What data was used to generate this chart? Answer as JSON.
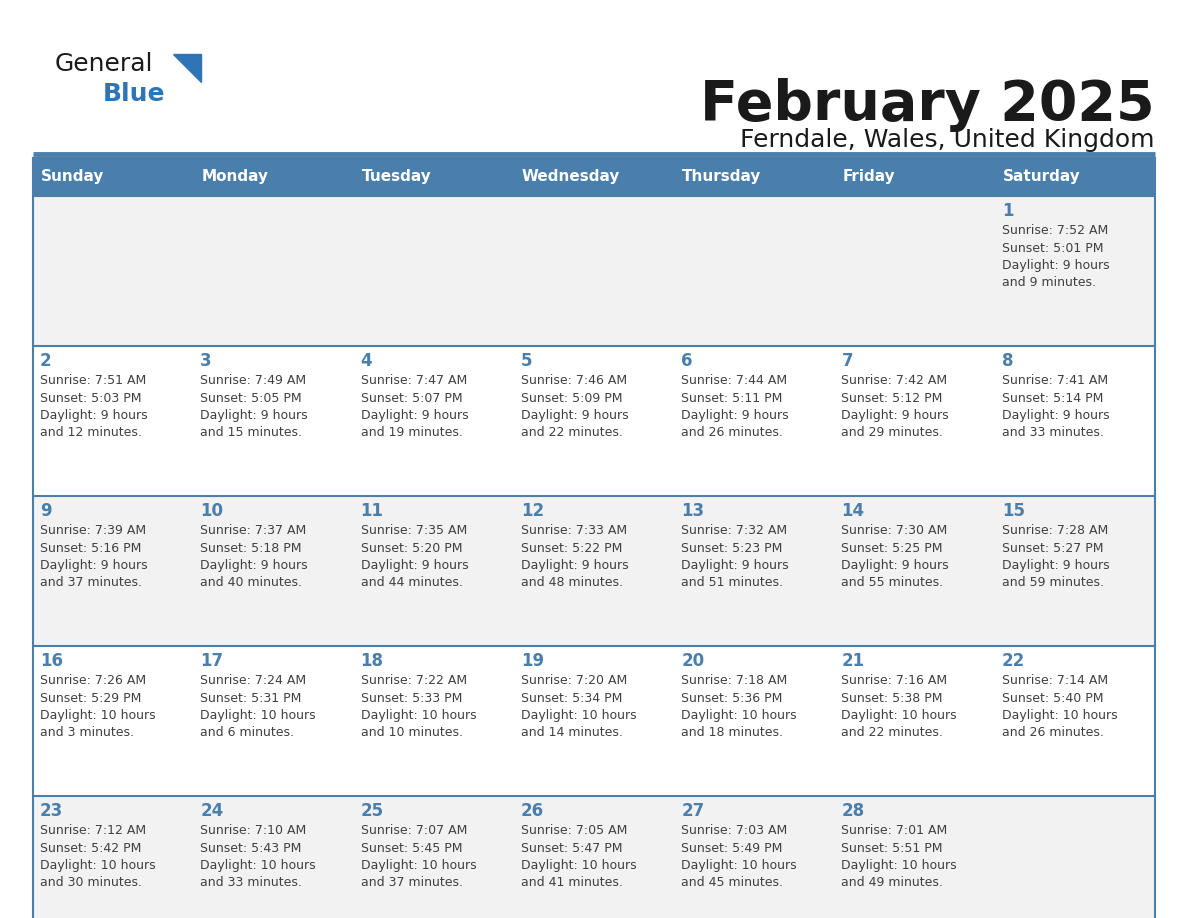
{
  "title": "February 2025",
  "subtitle": "Ferndale, Wales, United Kingdom",
  "header_bg_color": "#4A7EAB",
  "header_text_color": "#FFFFFF",
  "cell_bg_color_odd": "#F2F2F2",
  "cell_bg_color_even": "#FFFFFF",
  "day_number_color": "#4A7EAB",
  "text_color": "#404040",
  "border_color": "#4A7EAB",
  "days_of_week": [
    "Sunday",
    "Monday",
    "Tuesday",
    "Wednesday",
    "Thursday",
    "Friday",
    "Saturday"
  ],
  "calendar_data": [
    [
      null,
      null,
      null,
      null,
      null,
      null,
      {
        "day": "1",
        "sunrise": "7:52 AM",
        "sunset": "5:01 PM",
        "daylight_h": "9 hours",
        "daylight_m": "9 minutes"
      }
    ],
    [
      {
        "day": "2",
        "sunrise": "7:51 AM",
        "sunset": "5:03 PM",
        "daylight_h": "9 hours",
        "daylight_m": "12 minutes"
      },
      {
        "day": "3",
        "sunrise": "7:49 AM",
        "sunset": "5:05 PM",
        "daylight_h": "9 hours",
        "daylight_m": "15 minutes"
      },
      {
        "day": "4",
        "sunrise": "7:47 AM",
        "sunset": "5:07 PM",
        "daylight_h": "9 hours",
        "daylight_m": "19 minutes"
      },
      {
        "day": "5",
        "sunrise": "7:46 AM",
        "sunset": "5:09 PM",
        "daylight_h": "9 hours",
        "daylight_m": "22 minutes"
      },
      {
        "day": "6",
        "sunrise": "7:44 AM",
        "sunset": "5:11 PM",
        "daylight_h": "9 hours",
        "daylight_m": "26 minutes"
      },
      {
        "day": "7",
        "sunrise": "7:42 AM",
        "sunset": "5:12 PM",
        "daylight_h": "9 hours",
        "daylight_m": "29 minutes"
      },
      {
        "day": "8",
        "sunrise": "7:41 AM",
        "sunset": "5:14 PM",
        "daylight_h": "9 hours",
        "daylight_m": "33 minutes"
      }
    ],
    [
      {
        "day": "9",
        "sunrise": "7:39 AM",
        "sunset": "5:16 PM",
        "daylight_h": "9 hours",
        "daylight_m": "37 minutes"
      },
      {
        "day": "10",
        "sunrise": "7:37 AM",
        "sunset": "5:18 PM",
        "daylight_h": "9 hours",
        "daylight_m": "40 minutes"
      },
      {
        "day": "11",
        "sunrise": "7:35 AM",
        "sunset": "5:20 PM",
        "daylight_h": "9 hours",
        "daylight_m": "44 minutes"
      },
      {
        "day": "12",
        "sunrise": "7:33 AM",
        "sunset": "5:22 PM",
        "daylight_h": "9 hours",
        "daylight_m": "48 minutes"
      },
      {
        "day": "13",
        "sunrise": "7:32 AM",
        "sunset": "5:23 PM",
        "daylight_h": "9 hours",
        "daylight_m": "51 minutes"
      },
      {
        "day": "14",
        "sunrise": "7:30 AM",
        "sunset": "5:25 PM",
        "daylight_h": "9 hours",
        "daylight_m": "55 minutes"
      },
      {
        "day": "15",
        "sunrise": "7:28 AM",
        "sunset": "5:27 PM",
        "daylight_h": "9 hours",
        "daylight_m": "59 minutes"
      }
    ],
    [
      {
        "day": "16",
        "sunrise": "7:26 AM",
        "sunset": "5:29 PM",
        "daylight_h": "10 hours",
        "daylight_m": "3 minutes"
      },
      {
        "day": "17",
        "sunrise": "7:24 AM",
        "sunset": "5:31 PM",
        "daylight_h": "10 hours",
        "daylight_m": "6 minutes"
      },
      {
        "day": "18",
        "sunrise": "7:22 AM",
        "sunset": "5:33 PM",
        "daylight_h": "10 hours",
        "daylight_m": "10 minutes"
      },
      {
        "day": "19",
        "sunrise": "7:20 AM",
        "sunset": "5:34 PM",
        "daylight_h": "10 hours",
        "daylight_m": "14 minutes"
      },
      {
        "day": "20",
        "sunrise": "7:18 AM",
        "sunset": "5:36 PM",
        "daylight_h": "10 hours",
        "daylight_m": "18 minutes"
      },
      {
        "day": "21",
        "sunrise": "7:16 AM",
        "sunset": "5:38 PM",
        "daylight_h": "10 hours",
        "daylight_m": "22 minutes"
      },
      {
        "day": "22",
        "sunrise": "7:14 AM",
        "sunset": "5:40 PM",
        "daylight_h": "10 hours",
        "daylight_m": "26 minutes"
      }
    ],
    [
      {
        "day": "23",
        "sunrise": "7:12 AM",
        "sunset": "5:42 PM",
        "daylight_h": "10 hours",
        "daylight_m": "30 minutes"
      },
      {
        "day": "24",
        "sunrise": "7:10 AM",
        "sunset": "5:43 PM",
        "daylight_h": "10 hours",
        "daylight_m": "33 minutes"
      },
      {
        "day": "25",
        "sunrise": "7:07 AM",
        "sunset": "5:45 PM",
        "daylight_h": "10 hours",
        "daylight_m": "37 minutes"
      },
      {
        "day": "26",
        "sunrise": "7:05 AM",
        "sunset": "5:47 PM",
        "daylight_h": "10 hours",
        "daylight_m": "41 minutes"
      },
      {
        "day": "27",
        "sunrise": "7:03 AM",
        "sunset": "5:49 PM",
        "daylight_h": "10 hours",
        "daylight_m": "45 minutes"
      },
      {
        "day": "28",
        "sunrise": "7:01 AM",
        "sunset": "5:51 PM",
        "daylight_h": "10 hours",
        "daylight_m": "49 minutes"
      },
      null
    ]
  ]
}
